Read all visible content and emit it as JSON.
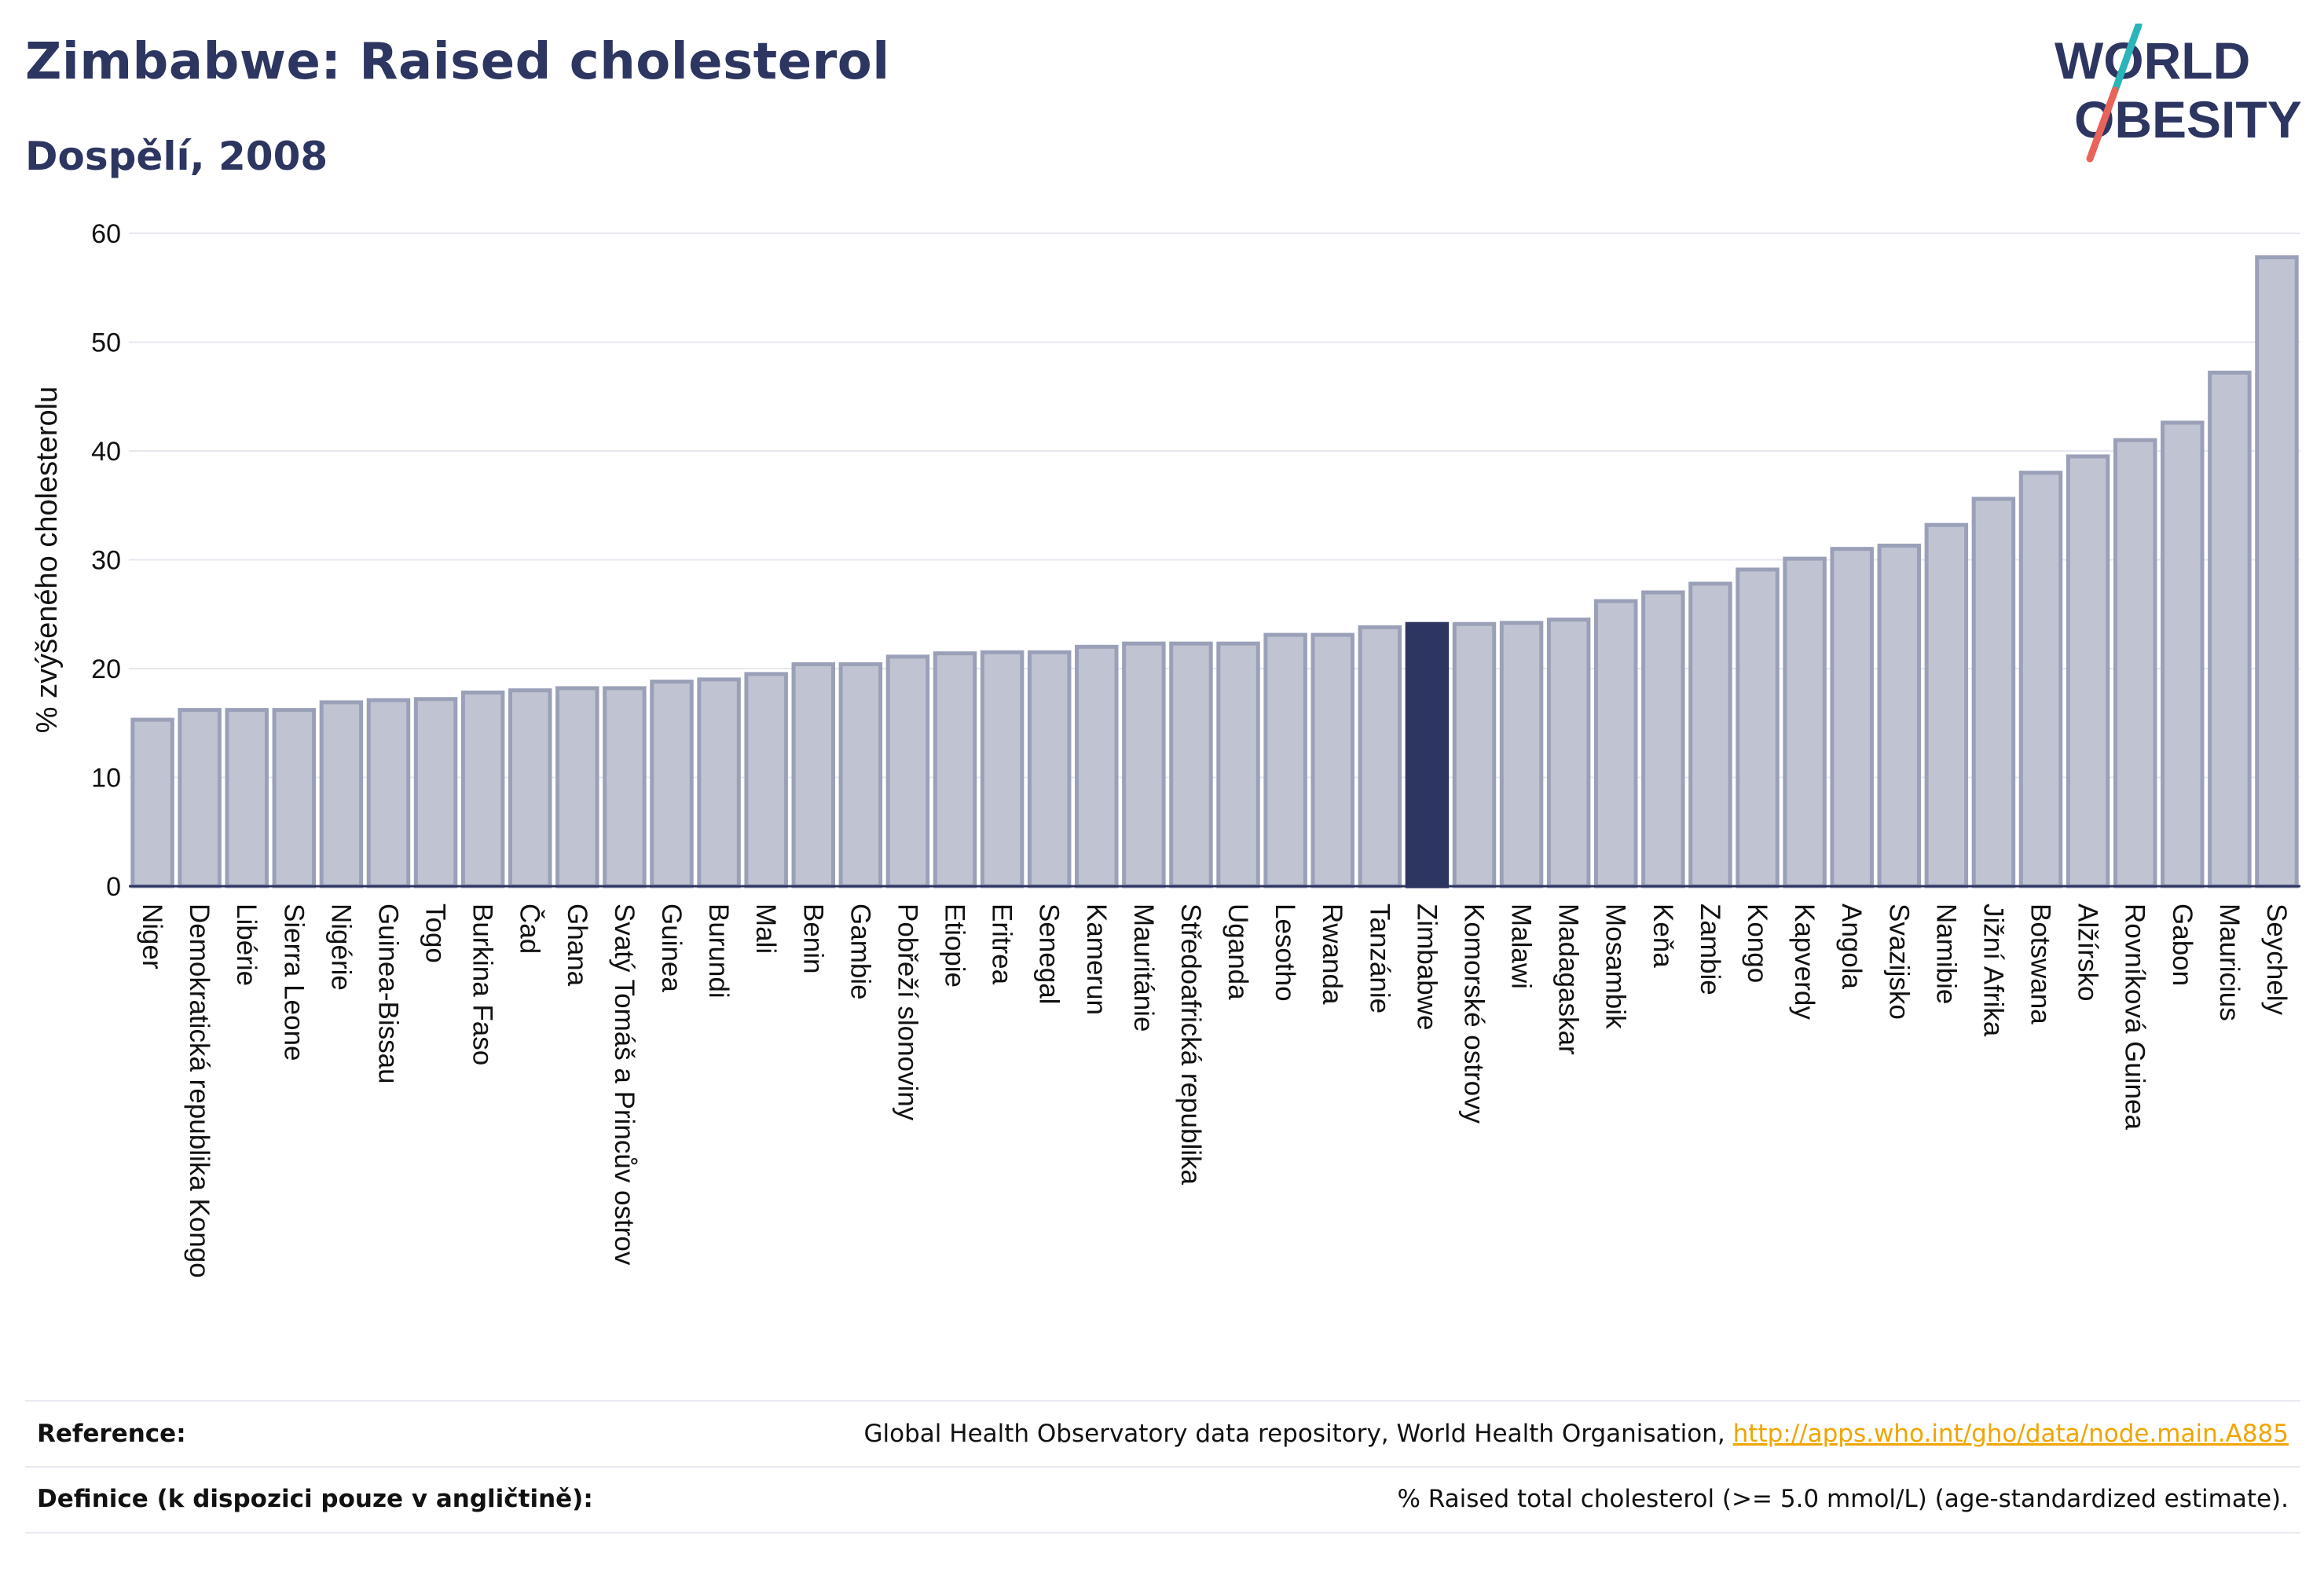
{
  "header": {
    "title": "Zimbabwe: Raised cholesterol",
    "subtitle": "Dospělí, 2008"
  },
  "logo": {
    "line1": "WORLD",
    "line2": "OBESITY",
    "colors": {
      "text": "#2d3561",
      "slash_top": "#2bb5b8",
      "slash_bottom": "#e8645a"
    }
  },
  "chart_data": {
    "type": "bar",
    "ylabel": "% zvýšeného cholesterolu",
    "xlabel": "",
    "ylim": [
      0,
      60
    ],
    "yticks": [
      0,
      10,
      20,
      30,
      40,
      50,
      60
    ],
    "grid": true,
    "highlight": "Zimbabwe",
    "colors": {
      "bar": "#c0c4d2",
      "bar_edge": "#9aa0b8",
      "highlight": "#2d3561"
    },
    "categories": [
      "Niger",
      "Demokratická republika Kongo",
      "Libérie",
      "Sierra Leone",
      "Nigérie",
      "Guinea-Bissau",
      "Togo",
      "Burkina Faso",
      "Čad",
      "Ghana",
      "Svatý Tomáš a Princův ostrov",
      "Guinea",
      "Burundi",
      "Mali",
      "Benin",
      "Gambie",
      "Pobřeží slonoviny",
      "Etiopie",
      "Eritrea",
      "Senegal",
      "Kamerun",
      "Mauritánie",
      "Středoafrická republika",
      "Uganda",
      "Lesotho",
      "Rwanda",
      "Tanzánie",
      "Zimbabwe",
      "Komorské ostrovy",
      "Malawi",
      "Madagaskar",
      "Mosambik",
      "Keňa",
      "Zambie",
      "Kongo",
      "Kapverdy",
      "Angola",
      "Svazijsko",
      "Namibie",
      "Jižní Afrika",
      "Botswana",
      "Alžírsko",
      "Rovníková Guinea",
      "Gabon",
      "Mauricius",
      "Seychely"
    ],
    "values": [
      15.3,
      16.2,
      16.2,
      16.2,
      16.9,
      17.1,
      17.2,
      17.8,
      18.0,
      18.2,
      18.2,
      18.8,
      19.0,
      19.5,
      20.4,
      20.4,
      21.1,
      21.4,
      21.5,
      21.5,
      22.0,
      22.3,
      22.3,
      22.3,
      23.1,
      23.1,
      23.8,
      24.1,
      24.1,
      24.2,
      24.5,
      26.2,
      27.0,
      27.8,
      29.1,
      30.1,
      31.0,
      31.3,
      33.2,
      35.6,
      38.0,
      39.5,
      41.0,
      42.6,
      47.2,
      57.8
    ]
  },
  "footer": {
    "reference_label": "Reference:",
    "reference_text": "Global Health Observatory data repository, World Health Organisation, ",
    "reference_link": "http://apps.who.int/gho/data/node.main.A885",
    "definition_label": "Definice (k dispozici pouze v angličtině):",
    "definition_text": "% Raised total cholesterol (>= 5.0 mmol/L) (age-standardized estimate)."
  }
}
